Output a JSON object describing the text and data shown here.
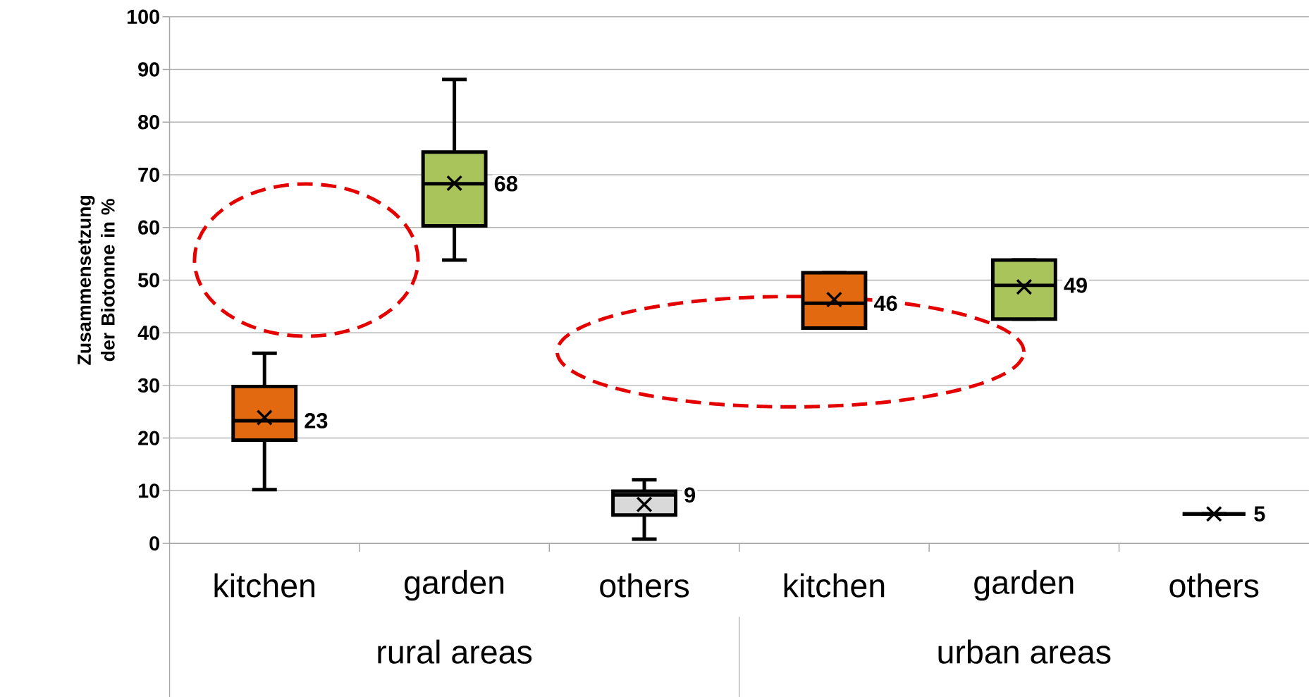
{
  "chart_data": {
    "type": "box",
    "ylabel": "Zusammensetzung der Biotonne in %",
    "categories": [
      "kitchen",
      "garden",
      "others",
      "kitchen",
      "garden",
      "others"
    ],
    "boxes": [
      {
        "low": 10.2,
        "q1": 19.6,
        "median": 23.3,
        "q3": 29.8,
        "high": 36.1,
        "mean": 23.9
      },
      {
        "low": 53.8,
        "q1": 60.3,
        "median": 68.3,
        "q3": 74.3,
        "high": 88.1,
        "mean": 68.4
      },
      {
        "low": 0.8,
        "q1": 5.4,
        "median": 9.2,
        "q3": 9.9,
        "high": 12.1,
        "mean": 7.4
      },
      {
        "low": 40.9,
        "q1": 40.9,
        "median": 45.6,
        "q3": 51.4,
        "high": 51.4,
        "mean": 46.3
      },
      {
        "low": 42.6,
        "q1": 42.6,
        "median": 49.0,
        "q3": 53.8,
        "high": 53.8,
        "mean": 48.7
      },
      {
        "low": 5.6,
        "q1": 5.6,
        "median": 5.6,
        "q3": 5.6,
        "high": 5.6,
        "mean": 5.6
      }
    ],
    "colors": [
      "#e2690f",
      "#a9c45a",
      "#d9d9d9",
      "#e2690f",
      "#a9c45a",
      "#000000"
    ],
    "value_labels": [
      "23",
      "68",
      "9",
      "46",
      "49",
      "5"
    ],
    "annotations": [
      "rural areas",
      "urban areas"
    ],
    "ylim": [
      0,
      100
    ],
    "yticks": [
      0,
      10,
      20,
      30,
      40,
      50,
      60,
      70,
      80,
      90,
      100
    ],
    "grid": "y"
  }
}
